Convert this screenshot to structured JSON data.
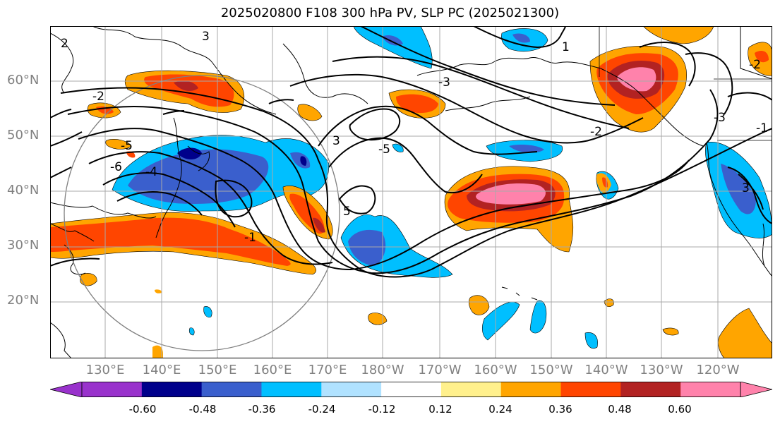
{
  "title": "2025020800 F108 300 hPa PV, SLP PC (2025021300)",
  "lat_labels": [
    "60°N",
    "50°N",
    "40°N",
    "30°N",
    "20°N"
  ],
  "lon_labels": [
    "130°E",
    "140°E",
    "150°E",
    "160°E",
    "170°E",
    "180°W",
    "170°W",
    "160°W",
    "150°W",
    "140°W",
    "130°W",
    "120°W"
  ],
  "colorbar": {
    "colors": [
      "#9932cc",
      "#00008b",
      "#3a5fcd",
      "#00bfff",
      "#b0e2ff",
      "#ffffff",
      "#fff08c",
      "#ffa500",
      "#ff4500",
      "#b22222",
      "#ff82ab"
    ],
    "tick_labels": [
      "-0.60",
      "-0.48",
      "-0.36",
      "-0.24",
      "-0.12",
      "0.12",
      "0.24",
      "0.36",
      "0.48",
      "0.60"
    ]
  },
  "contour_labels": [
    "2",
    "3",
    "1",
    "-3",
    "-2",
    "-1",
    "3",
    "-5",
    "5",
    "-4",
    "-6",
    "-5",
    "-2",
    "-3",
    "3",
    "-2",
    "-1"
  ],
  "icons": {
    "colorbar_min_extension": "triangle-left",
    "colorbar_max_extension": "triangle-right"
  }
}
